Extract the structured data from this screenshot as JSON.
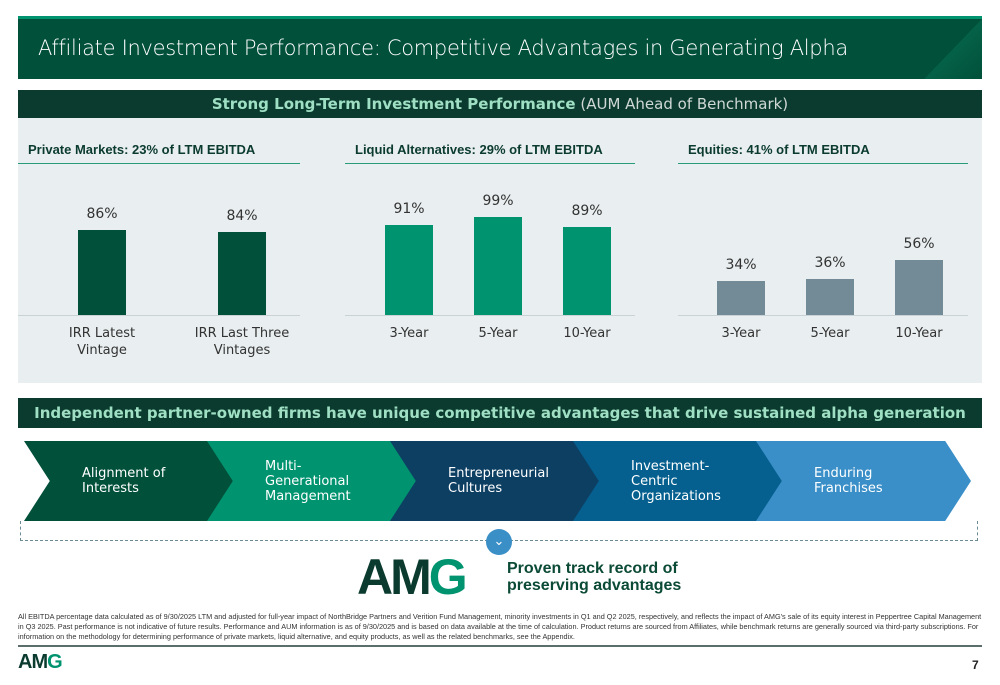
{
  "title": "Affiliate Investment Performance: Competitive Advantages in Generating Alpha",
  "subheader": {
    "bold": "Strong Long-Term Investment Performance",
    "note": "(AUM Ahead of Benchmark)"
  },
  "chart_data": [
    {
      "type": "bar",
      "title": "Private Markets: 23% of LTM EBITDA",
      "categories": [
        "IRR Latest Vintage",
        "IRR Last Three Vintages"
      ],
      "values": [
        86,
        84
      ],
      "labels": [
        "86%",
        "84%"
      ],
      "color": "#01503a",
      "ylim": [
        0,
        100
      ]
    },
    {
      "type": "bar",
      "title": "Liquid Alternatives: 29% of LTM EBITDA",
      "categories": [
        "3-Year",
        "5-Year",
        "10-Year"
      ],
      "values": [
        91,
        99,
        89
      ],
      "labels": [
        "91%",
        "99%",
        "89%"
      ],
      "color": "#00936f",
      "ylim": [
        0,
        100
      ]
    },
    {
      "type": "bar",
      "title": "Equities: 41% of LTM EBITDA",
      "categories": [
        "3-Year",
        "5-Year",
        "10-Year"
      ],
      "values": [
        34,
        36,
        56
      ],
      "labels": [
        "34%",
        "36%",
        "56%"
      ],
      "color": "#738a97",
      "ylim": [
        0,
        100
      ]
    }
  ],
  "banner": "Independent partner-owned firms have unique competitive advantages that drive sustained alpha generation",
  "advantages": [
    {
      "label": "Alignment of Interests",
      "color": "#01503a"
    },
    {
      "label": "Multi-Generational Management",
      "color": "#00936f"
    },
    {
      "label": "Entrepreneurial Cultures",
      "color": "#0d3f63"
    },
    {
      "label": "Investment-Centric Organizations",
      "color": "#05608f"
    },
    {
      "label": "Enduring Franchises",
      "color": "#3a8fc8"
    }
  ],
  "logo": {
    "a": "AM",
    "b": "G"
  },
  "proven": "Proven track record of preserving advantages",
  "footnote": "All EBITDA percentage data calculated as of 9/30/2025 LTM and adjusted for full-year impact of NorthBridge Partners and Verition Fund Management, minority investments in Q1 and Q2 2025, respectively, and reflects the impact of AMG's sale of its equity interest in Peppertree Capital Management in Q3 2025. Past performance is not indicative of future results. Performance and AUM information is as of 9/30/2025 and is based on data available at the time of calculation. Product returns are sourced from Affiliates, while benchmark returns are generally sourced via third-party subscriptions. For information on the methodology for determining performance of private markets, liquid alternative, and equity products, as well as the related benchmarks, see the Appendix.",
  "page": "7"
}
